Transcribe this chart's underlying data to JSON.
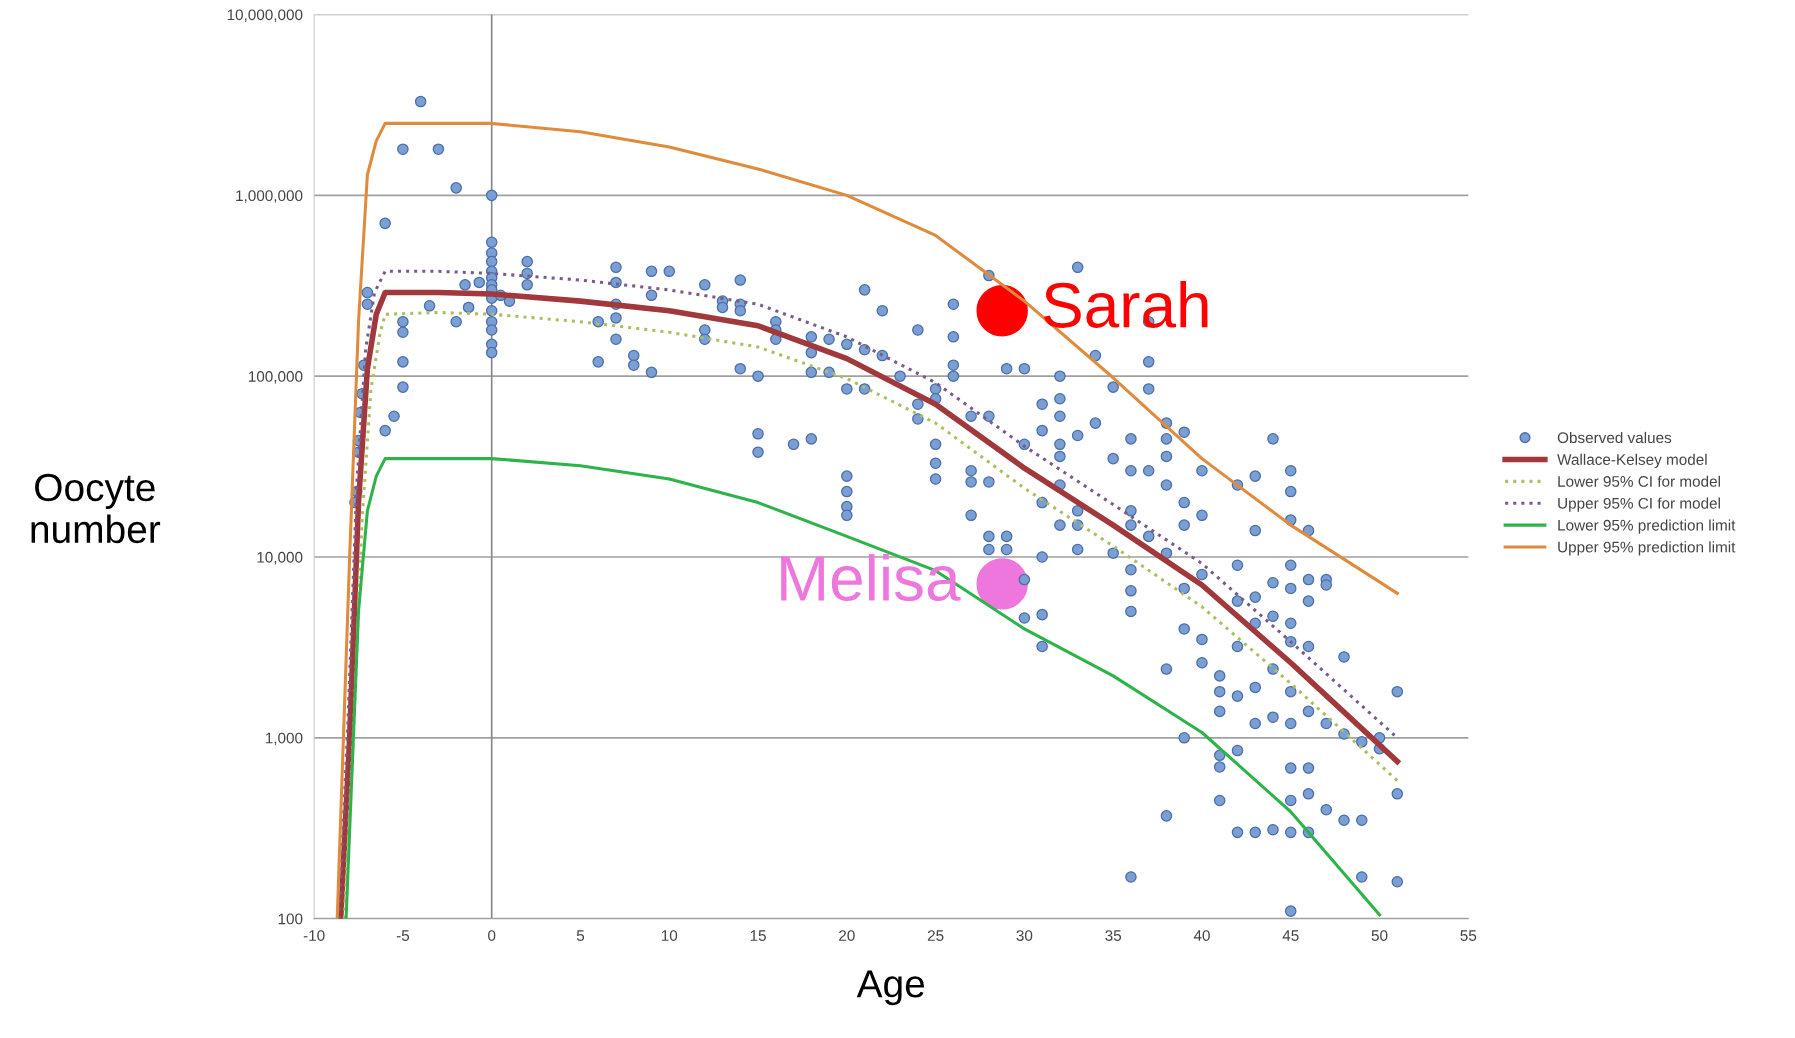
{
  "chart_data": {
    "type": "scatter",
    "xlabel": "Age",
    "ylabel": "Oocyte\nnumber",
    "log": "y",
    "xlim": [
      -10,
      55
    ],
    "xticks": [
      -10,
      -5,
      0,
      5,
      10,
      15,
      20,
      25,
      30,
      35,
      40,
      45,
      50,
      55
    ],
    "ylim": [
      100,
      10000000
    ],
    "yticks": [
      {
        "value": 100,
        "label": "100"
      },
      {
        "value": 1000,
        "label": "1,000"
      },
      {
        "value": 10000,
        "label": "10,000"
      },
      {
        "value": 100000,
        "label": "100,000"
      },
      {
        "value": 1000000,
        "label": "1,000,000"
      },
      {
        "value": 10000000,
        "label": "10,000,000"
      }
    ],
    "grid": "y",
    "legend": "right",
    "ref_lines": [
      {
        "axis": "x",
        "value": 0,
        "label": null,
        "color": "#888888"
      }
    ],
    "series": [
      {
        "name": "Observed values",
        "color": "#7a9fd4",
        "marker": "circle",
        "line_style": "none",
        "x": [
          -4,
          -5,
          -3,
          -2,
          -6,
          0,
          -7,
          -7,
          -7.2,
          -7.3,
          -7.4,
          -7.5,
          -7.5,
          -7.6,
          -7.7,
          -3.5,
          -5,
          -5,
          -5,
          -5,
          -5.5,
          -6,
          -1.5,
          -2,
          -1.3,
          -0.7,
          0,
          0,
          0,
          0,
          0,
          0,
          0,
          0,
          0,
          0,
          0,
          0,
          0,
          2,
          2,
          2,
          0.5,
          1,
          6,
          6,
          7,
          7,
          7,
          7,
          7,
          8,
          8,
          9,
          9,
          9,
          10,
          12,
          12,
          12,
          13,
          13,
          14,
          14,
          14,
          14,
          15,
          15,
          15,
          16,
          16,
          16,
          17,
          18,
          18,
          18,
          18,
          19,
          19,
          20,
          20,
          20,
          20,
          20,
          20,
          21,
          21,
          21,
          22,
          22,
          23,
          24,
          24,
          24,
          25,
          25,
          25,
          25,
          25,
          26,
          26,
          26,
          26,
          27,
          27,
          27,
          27,
          28,
          28,
          28,
          28,
          28,
          29,
          29,
          29,
          30,
          30,
          30,
          30,
          31,
          31,
          31,
          31,
          31,
          31,
          32,
          32,
          32,
          32,
          32,
          32,
          32,
          33,
          33,
          33,
          33,
          33,
          34,
          34,
          35,
          35,
          35,
          36,
          36,
          36,
          36,
          36,
          36,
          36,
          36,
          37,
          37,
          37,
          37,
          37,
          38,
          38,
          38,
          38,
          38,
          38,
          38,
          39,
          39,
          39,
          39,
          39,
          39,
          40,
          40,
          40,
          40,
          40,
          41,
          41,
          41,
          41,
          41,
          41,
          42,
          42,
          42,
          42,
          42,
          42,
          42,
          43,
          43,
          43,
          43,
          43,
          43,
          43,
          44,
          44,
          44,
          44,
          44,
          44,
          45,
          45,
          45,
          45,
          45,
          45,
          45,
          45,
          45,
          45,
          45,
          45,
          45,
          46,
          46,
          46,
          46,
          46,
          46,
          46,
          46,
          47,
          47,
          47,
          47,
          48,
          48,
          48,
          49,
          49,
          49,
          50,
          50,
          51,
          51,
          51
        ],
        "values": [
          3300000,
          1800000,
          1800000,
          1100000,
          700000,
          1000000,
          290000,
          250000,
          115000,
          80000,
          63000,
          44000,
          38000,
          23000,
          20000,
          245000,
          200000,
          175000,
          120000,
          87000,
          60000,
          50000,
          320000,
          200000,
          240000,
          330000,
          550000,
          480000,
          430000,
          380000,
          350000,
          320000,
          300000,
          270000,
          230000,
          200000,
          180000,
          150000,
          135000,
          430000,
          370000,
          320000,
          280000,
          260000,
          200000,
          120000,
          400000,
          330000,
          250000,
          210000,
          160000,
          130000,
          115000,
          380000,
          280000,
          105000,
          380000,
          320000,
          180000,
          160000,
          260000,
          240000,
          340000,
          250000,
          230000,
          110000,
          100000,
          48000,
          38000,
          200000,
          180000,
          160000,
          42000,
          45000,
          165000,
          135000,
          105000,
          160000,
          105000,
          150000,
          85000,
          28000,
          23000,
          19000,
          17000,
          300000,
          140000,
          85000,
          230000,
          130000,
          100000,
          180000,
          70000,
          58000,
          85000,
          75000,
          42000,
          33000,
          27000,
          250000,
          165000,
          115000,
          100000,
          60000,
          30000,
          26000,
          17000,
          360000,
          60000,
          26000,
          13000,
          11000,
          110000,
          13000,
          11000,
          110000,
          42000,
          7500,
          4600,
          70000,
          50000,
          20000,
          10000,
          4800,
          3200,
          100000,
          75000,
          60000,
          42000,
          36000,
          25000,
          15000,
          400000,
          47000,
          18000,
          15000,
          11000,
          130000,
          55000,
          87000,
          35000,
          10500,
          45000,
          30000,
          18000,
          15000,
          8500,
          6500,
          5000,
          170,
          200000,
          120000,
          85000,
          30000,
          13000,
          55000,
          45000,
          36000,
          25000,
          10500,
          2400,
          370,
          49000,
          20000,
          15000,
          6700,
          4000,
          1000,
          30000,
          17000,
          8000,
          3500,
          2600,
          2200,
          1800,
          1400,
          800,
          690,
          450,
          25000,
          9000,
          5700,
          3200,
          1700,
          850,
          300,
          28000,
          14000,
          6000,
          4300,
          1900,
          1200,
          300,
          45000,
          7200,
          4700,
          2400,
          1300,
          310,
          30000,
          23000,
          16000,
          9000,
          6700,
          4300,
          3400,
          1800,
          1200,
          680,
          450,
          300,
          110,
          14000,
          7500,
          5700,
          3200,
          1400,
          680,
          490,
          300,
          7500,
          7000,
          1200,
          400,
          2800,
          1050,
          350,
          950,
          350,
          170,
          1000,
          870,
          1800,
          490,
          160
        ]
      },
      {
        "name": "Wallace-Kelsey model",
        "type": "line",
        "color": "#a0383c",
        "marker": "none",
        "line_style": "solid",
        "x": [
          -8.5,
          -8,
          -7.5,
          -7,
          -6.5,
          -6,
          -3,
          0,
          5,
          10,
          15,
          20,
          25,
          30,
          35,
          40,
          45,
          51
        ],
        "values": [
          100,
          1000,
          20000,
          110000,
          220000,
          290000,
          290000,
          285000,
          260000,
          230000,
          190000,
          125000,
          70000,
          31000,
          15000,
          7000,
          2600,
          740
        ]
      },
      {
        "name": "Lower 95% CI for model",
        "type": "line",
        "color": "#a8c060",
        "marker": "none",
        "line_style": "dotted",
        "x": [
          -8.3,
          -7.8,
          -7.3,
          -6.8,
          -6.3,
          -6,
          -3,
          0,
          5,
          10,
          15,
          20,
          25,
          30,
          35,
          40,
          45,
          51
        ],
        "values": [
          100,
          1000,
          16000,
          85000,
          170000,
          220000,
          225000,
          220000,
          200000,
          175000,
          145000,
          97000,
          55000,
          24000,
          11500,
          5300,
          2000,
          580
        ]
      },
      {
        "name": "Upper 95% CI for model",
        "type": "line",
        "color": "#7a5a8a",
        "marker": "none",
        "line_style": "dotted",
        "x": [
          -8.6,
          -8.1,
          -7.6,
          -7.1,
          -6.6,
          -6,
          -3,
          0,
          5,
          10,
          15,
          20,
          25,
          30,
          35,
          40,
          45,
          51
        ],
        "values": [
          100,
          1200,
          25000,
          140000,
          290000,
          380000,
          380000,
          370000,
          340000,
          300000,
          250000,
          165000,
          92000,
          41000,
          19500,
          9200,
          3400,
          1000
        ]
      },
      {
        "name": "Lower 95% prediction limit",
        "type": "line",
        "color": "#2db34a",
        "marker": "none",
        "line_style": "solid",
        "x": [
          -8.2,
          -7.5,
          -7,
          -6.5,
          -6,
          -3,
          0,
          5,
          10,
          15,
          20,
          25,
          30,
          35,
          40,
          45,
          50
        ],
        "values": [
          100,
          5000,
          18000,
          28000,
          35000,
          35000,
          35000,
          32000,
          27000,
          20000,
          13000,
          8400,
          4000,
          2200,
          1070,
          390,
          105
        ]
      },
      {
        "name": "Upper 95% prediction limit",
        "type": "line",
        "color": "#e08a3c",
        "marker": "none",
        "line_style": "solid",
        "x": [
          -8.7,
          -8,
          -7.5,
          -7,
          -6.5,
          -6,
          -3,
          0,
          5,
          10,
          15,
          20,
          25,
          30,
          35,
          40,
          45,
          51
        ],
        "values": [
          100,
          10000,
          200000,
          1300000,
          2000000,
          2500000,
          2500000,
          2500000,
          2250000,
          1850000,
          1400000,
          1000000,
          600000,
          260000,
          98000,
          35000,
          15000,
          6300
        ]
      },
      {
        "name": "Sarah",
        "type": "scatter",
        "color": "#ff0000",
        "marker": "circle",
        "line_style": "none",
        "x": [
          28.75
        ],
        "values": [
          230000
        ]
      },
      {
        "name": "Melisa",
        "type": "scatter",
        "color": "#ee77dd",
        "marker": "circle",
        "line_style": "none",
        "x": [
          28.75
        ],
        "values": [
          7100
        ]
      }
    ]
  }
}
